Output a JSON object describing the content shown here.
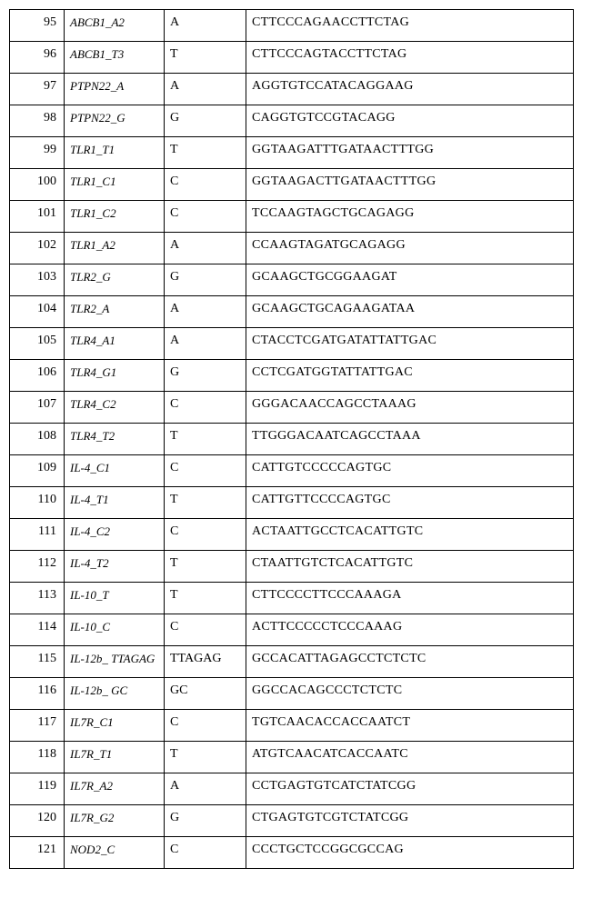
{
  "table": {
    "rows": [
      {
        "num": "95",
        "gene": "ABCB1_A2",
        "allele": "A",
        "seq": "CTTCCCAGAACCTTCTAG"
      },
      {
        "num": "96",
        "gene": "ABCB1_T3",
        "allele": "T",
        "seq": "CTTCCCAGTACCTTCTAG"
      },
      {
        "num": "97",
        "gene": "PTPN22_A",
        "allele": "A",
        "seq": "AGGTGTCCATACAGGAAG"
      },
      {
        "num": "98",
        "gene": "PTPN22_G",
        "allele": "G",
        "seq": "CAGGTGTCCGTACAGG"
      },
      {
        "num": "99",
        "gene": "TLR1_T1",
        "allele": "T",
        "seq": "GGTAAGATTTGATAACTTTGG"
      },
      {
        "num": "100",
        "gene": "TLR1_C1",
        "allele": "C",
        "seq": "GGTAAGACTTGATAACTTTGG"
      },
      {
        "num": "101",
        "gene": "TLR1_C2",
        "allele": "C",
        "seq": "TCCAAGTAGCTGCAGAGG"
      },
      {
        "num": "102",
        "gene": "TLR1_A2",
        "allele": "A",
        "seq": "CCAAGTAGATGCAGAGG"
      },
      {
        "num": "103",
        "gene": "TLR2_G",
        "allele": "G",
        "seq": "GCAAGCTGCGGAAGAT"
      },
      {
        "num": "104",
        "gene": "TLR2_A",
        "allele": "A",
        "seq": "GCAAGCTGCAGAAGATAA"
      },
      {
        "num": "105",
        "gene": "TLR4_A1",
        "allele": "A",
        "seq": "CTACCTCGATGATATTATTGAC"
      },
      {
        "num": "106",
        "gene": "TLR4_G1",
        "allele": "G",
        "seq": "CCTCGATGGTATTATTGAC"
      },
      {
        "num": "107",
        "gene": "TLR4_C2",
        "allele": "C",
        "seq": "GGGACAACCAGCCTAAAG"
      },
      {
        "num": "108",
        "gene": "TLR4_T2",
        "allele": "T",
        "seq": "TTGGGACAATCAGCCTAAA"
      },
      {
        "num": "109",
        "gene": "IL-4_C1",
        "allele": "C",
        "seq": "CATTGTCCCCCAGTGC"
      },
      {
        "num": "110",
        "gene": "IL-4_T1",
        "allele": "T",
        "seq": "CATTGTTCCCCAGTGC"
      },
      {
        "num": "111",
        "gene": "IL-4_C2",
        "allele": "C",
        "seq": "ACTAATTGCCTCACATTGTC"
      },
      {
        "num": "112",
        "gene": "IL-4_T2",
        "allele": "T",
        "seq": "CTAATTGTCTCACATTGTC"
      },
      {
        "num": "113",
        "gene": "IL-10_T",
        "allele": "T",
        "seq": "CTTCCCCTTCCCAAAGA"
      },
      {
        "num": "114",
        "gene": "IL-10_C",
        "allele": "C",
        "seq": "ACTTCCCCCTCCCAAAG"
      },
      {
        "num": "115",
        "gene": "IL-12b_\nTTAGAG",
        "allele": "TTAGAG",
        "seq": "GCCACATTAGAGCCTCTCTC"
      },
      {
        "num": "116",
        "gene": "IL-12b_ GC",
        "allele": "GC",
        "seq": "GGCCACAGCCCTCTCTC"
      },
      {
        "num": "117",
        "gene": "IL7R_C1",
        "allele": "C",
        "seq": "TGTCAACACCACCAATCT"
      },
      {
        "num": "118",
        "gene": "IL7R_T1",
        "allele": "T",
        "seq": "ATGTCAACATCACCAATC"
      },
      {
        "num": "119",
        "gene": "IL7R_A2",
        "allele": "A",
        "seq": "CCTGAGTGTCATCTATCGG"
      },
      {
        "num": "120",
        "gene": "IL7R_G2",
        "allele": "G",
        "seq": "CTGAGTGTCGTCTATCGG"
      },
      {
        "num": "121",
        "gene": "NOD2_C",
        "allele": "C",
        "seq": "CCCTGCTCCGGCGCCAG"
      }
    ]
  }
}
